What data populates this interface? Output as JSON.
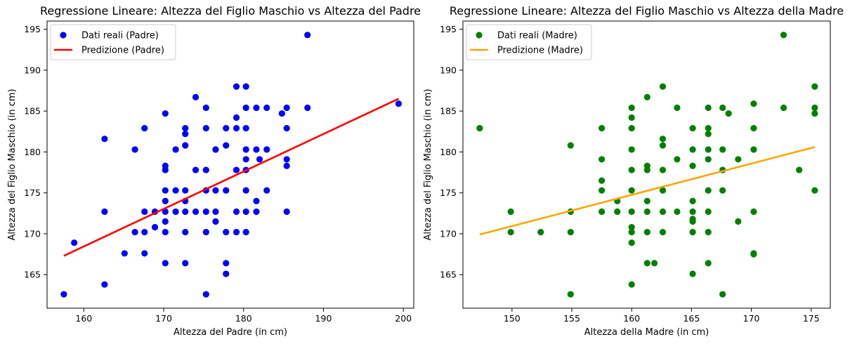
{
  "chart_data": [
    {
      "type": "scatter",
      "title": "Regressione Lineare: Altezza del Figlio Maschio vs Altezza del Padre",
      "xlabel": "Altezza del Padre (in cm)",
      "ylabel": "Altezza del Figlio Maschio (in cm)",
      "xlim": [
        155.4,
        201.3
      ],
      "ylim": [
        160.9,
        196.0
      ],
      "xticks": [
        160,
        170,
        180,
        190,
        200
      ],
      "yticks": [
        165,
        170,
        175,
        180,
        185,
        190,
        195
      ],
      "grid": false,
      "legend_position": "upper-left",
      "series": [
        {
          "name": "Dati reali (Padre)",
          "kind": "scatter",
          "color": "#0000ff",
          "points": [
            [
              157.5,
              162.6
            ],
            [
              158.8,
              168.9
            ],
            [
              162.6,
              181.6
            ],
            [
              162.6,
              172.7
            ],
            [
              162.6,
              163.8
            ],
            [
              165.1,
              167.6
            ],
            [
              166.4,
              180.3
            ],
            [
              166.4,
              170.2
            ],
            [
              167.6,
              182.9
            ],
            [
              167.6,
              172.7
            ],
            [
              167.6,
              170.2
            ],
            [
              167.6,
              167.6
            ],
            [
              168.9,
              172.7
            ],
            [
              168.9,
              170.8
            ],
            [
              170.2,
              184.7
            ],
            [
              170.2,
              178.3
            ],
            [
              170.2,
              177.8
            ],
            [
              170.2,
              175.3
            ],
            [
              170.2,
              174.0
            ],
            [
              170.2,
              172.7
            ],
            [
              170.2,
              171.5
            ],
            [
              170.2,
              170.2
            ],
            [
              170.2,
              166.4
            ],
            [
              171.5,
              180.3
            ],
            [
              171.5,
              175.3
            ],
            [
              171.5,
              172.7
            ],
            [
              172.7,
              182.9
            ],
            [
              172.7,
              182.2
            ],
            [
              172.7,
              180.8
            ],
            [
              172.7,
              175.3
            ],
            [
              172.7,
              174.0
            ],
            [
              172.7,
              172.7
            ],
            [
              172.7,
              170.2
            ],
            [
              172.7,
              166.4
            ],
            [
              174.0,
              186.7
            ],
            [
              174.0,
              177.8
            ],
            [
              174.0,
              172.7
            ],
            [
              175.3,
              185.4
            ],
            [
              175.3,
              182.9
            ],
            [
              175.3,
              177.8
            ],
            [
              175.3,
              175.3
            ],
            [
              175.3,
              172.7
            ],
            [
              175.3,
              170.2
            ],
            [
              175.3,
              162.6
            ],
            [
              176.5,
              180.3
            ],
            [
              176.5,
              175.3
            ],
            [
              176.5,
              172.7
            ],
            [
              176.5,
              171.5
            ],
            [
              177.8,
              182.9
            ],
            [
              177.8,
              180.8
            ],
            [
              177.8,
              175.3
            ],
            [
              177.8,
              170.2
            ],
            [
              177.8,
              166.4
            ],
            [
              177.8,
              165.1
            ],
            [
              179.1,
              188.0
            ],
            [
              179.1,
              184.2
            ],
            [
              179.1,
              182.9
            ],
            [
              179.1,
              177.8
            ],
            [
              179.1,
              172.7
            ],
            [
              179.1,
              170.2
            ],
            [
              180.3,
              188.0
            ],
            [
              180.3,
              185.4
            ],
            [
              180.3,
              182.9
            ],
            [
              180.3,
              180.3
            ],
            [
              180.3,
              179.1
            ],
            [
              180.3,
              177.8
            ],
            [
              180.3,
              175.3
            ],
            [
              180.3,
              172.7
            ],
            [
              180.3,
              170.2
            ],
            [
              181.6,
              185.4
            ],
            [
              181.6,
              180.3
            ],
            [
              181.6,
              174.0
            ],
            [
              181.6,
              172.7
            ],
            [
              182.0,
              179.1
            ],
            [
              182.9,
              185.4
            ],
            [
              182.9,
              180.3
            ],
            [
              182.9,
              175.3
            ],
            [
              184.8,
              184.7
            ],
            [
              185.4,
              185.4
            ],
            [
              185.4,
              182.9
            ],
            [
              185.4,
              179.1
            ],
            [
              185.4,
              178.3
            ],
            [
              185.4,
              172.7
            ],
            [
              188.0,
              194.3
            ],
            [
              188.0,
              185.4
            ],
            [
              199.4,
              185.9
            ]
          ]
        },
        {
          "name": "Predizione (Padre)",
          "kind": "line",
          "color": "#ff0000",
          "x": [
            157.5,
            199.4
          ],
          "y": [
            167.3,
            186.5
          ]
        }
      ]
    },
    {
      "type": "scatter",
      "title": "Regressione Lineare: Altezza del Figlio Maschio vs Altezza della Madre",
      "xlabel": "Altezza della Madre (in cm)",
      "ylabel": "Altezza del Figlio Maschio (in cm)",
      "xlim": [
        145.9,
        176.6
      ],
      "ylim": [
        160.9,
        196.0
      ],
      "xticks": [
        150,
        155,
        160,
        165,
        170,
        175
      ],
      "yticks": [
        165,
        170,
        175,
        180,
        185,
        190,
        195
      ],
      "grid": false,
      "legend_position": "upper-left",
      "series": [
        {
          "name": "Dati reali (Madre)",
          "kind": "scatter",
          "color": "#008000",
          "points": [
            [
              147.3,
              182.9
            ],
            [
              149.9,
              172.7
            ],
            [
              149.9,
              170.2
            ],
            [
              152.4,
              170.2
            ],
            [
              154.9,
              180.8
            ],
            [
              154.9,
              172.7
            ],
            [
              154.9,
              170.2
            ],
            [
              154.9,
              162.6
            ],
            [
              157.5,
              182.9
            ],
            [
              157.5,
              179.1
            ],
            [
              157.5,
              176.5
            ],
            [
              157.5,
              175.3
            ],
            [
              157.5,
              172.7
            ],
            [
              158.8,
              174.0
            ],
            [
              158.8,
              172.7
            ],
            [
              160.0,
              185.4
            ],
            [
              160.0,
              184.2
            ],
            [
              160.0,
              182.9
            ],
            [
              160.0,
              180.3
            ],
            [
              160.0,
              177.8
            ],
            [
              160.0,
              175.3
            ],
            [
              160.0,
              172.7
            ],
            [
              160.0,
              170.8
            ],
            [
              160.0,
              170.2
            ],
            [
              160.0,
              168.9
            ],
            [
              160.0,
              163.8
            ],
            [
              161.3,
              186.7
            ],
            [
              161.3,
              178.3
            ],
            [
              161.3,
              177.8
            ],
            [
              161.3,
              174.0
            ],
            [
              161.3,
              172.7
            ],
            [
              161.3,
              170.2
            ],
            [
              161.3,
              166.4
            ],
            [
              161.9,
              166.4
            ],
            [
              162.6,
              188.0
            ],
            [
              162.6,
              181.6
            ],
            [
              162.6,
              180.8
            ],
            [
              162.6,
              177.8
            ],
            [
              162.6,
              175.3
            ],
            [
              162.6,
              172.7
            ],
            [
              162.6,
              170.2
            ],
            [
              163.8,
              185.4
            ],
            [
              163.8,
              179.1
            ],
            [
              163.8,
              172.7
            ],
            [
              165.1,
              182.9
            ],
            [
              165.1,
              180.3
            ],
            [
              165.1,
              178.3
            ],
            [
              165.1,
              174.0
            ],
            [
              165.1,
              172.7
            ],
            [
              165.1,
              171.8
            ],
            [
              165.1,
              171.5
            ],
            [
              165.1,
              170.2
            ],
            [
              165.1,
              165.1
            ],
            [
              166.4,
              185.4
            ],
            [
              166.4,
              182.9
            ],
            [
              166.4,
              182.2
            ],
            [
              166.4,
              180.3
            ],
            [
              166.4,
              179.1
            ],
            [
              166.4,
              175.3
            ],
            [
              166.4,
              172.7
            ],
            [
              166.4,
              170.2
            ],
            [
              166.4,
              166.4
            ],
            [
              167.6,
              185.4
            ],
            [
              167.6,
              180.3
            ],
            [
              167.6,
              177.8
            ],
            [
              167.6,
              175.3
            ],
            [
              167.6,
              162.6
            ],
            [
              168.1,
              184.7
            ],
            [
              168.9,
              179.1
            ],
            [
              168.9,
              171.5
            ],
            [
              170.2,
              185.9
            ],
            [
              170.2,
              182.9
            ],
            [
              170.2,
              180.3
            ],
            [
              170.2,
              172.7
            ],
            [
              170.2,
              167.6
            ],
            [
              170.2,
              167.5
            ],
            [
              172.7,
              194.3
            ],
            [
              172.7,
              185.4
            ],
            [
              174.0,
              177.8
            ],
            [
              175.3,
              188.0
            ],
            [
              175.3,
              185.4
            ],
            [
              175.3,
              184.7
            ],
            [
              175.3,
              175.3
            ]
          ]
        },
        {
          "name": "Predizione (Madre)",
          "kind": "line",
          "color": "#ffa500",
          "x": [
            147.3,
            175.3
          ],
          "y": [
            169.9,
            180.6
          ]
        }
      ]
    }
  ]
}
